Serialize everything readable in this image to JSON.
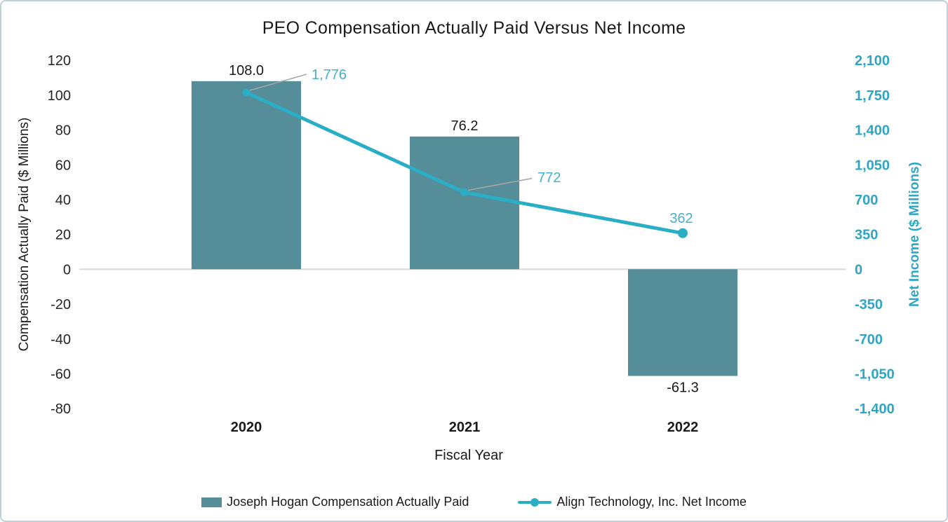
{
  "chart_data": {
    "type": "combo-bar-line",
    "title": "PEO Compensation Actually Paid Versus Net Income",
    "x_axis_title": "Fiscal Year",
    "categories": [
      "2020",
      "2021",
      "2022"
    ],
    "series": [
      {
        "name": "Joseph Hogan Compensation Actually Paid",
        "type": "bar",
        "axis": "left",
        "values": [
          108.0,
          76.2,
          -61.3
        ],
        "data_labels": [
          "108.0",
          "76.2",
          "-61.3"
        ],
        "color": "#558E98",
        "label_color": "#1a1a1a"
      },
      {
        "name": "Align Technology, Inc. Net Income",
        "type": "line",
        "axis": "right",
        "values": [
          1776,
          772,
          362
        ],
        "data_labels": [
          "1,776",
          "772",
          "362"
        ],
        "color": "#29AEC6",
        "label_color": "#45B0CA"
      }
    ],
    "left_axis": {
      "title": "Compensation Actually Paid ($ Millions)",
      "min": -80,
      "max": 120,
      "tick_values": [
        120,
        100,
        80,
        60,
        40,
        20,
        0,
        -20,
        -40,
        -60,
        -80
      ],
      "tick_labels": [
        "120",
        "100",
        "80",
        "60",
        "40",
        "20",
        "0",
        "-20",
        "-40",
        "-60",
        "-80"
      ],
      "text_color": "#262626"
    },
    "right_axis": {
      "title": "Net Income ($ Millions)",
      "min": -1400,
      "max": 2100,
      "tick_values": [
        2100,
        1750,
        1400,
        1050,
        700,
        350,
        0,
        -350,
        -700,
        -1050,
        -1400
      ],
      "tick_labels": [
        "2,100",
        "1,750",
        "1,400",
        "1,050",
        "700",
        "350",
        "0",
        "-350",
        "-700",
        "-1,050",
        "-1,400"
      ],
      "text_color": "#2EA6C2"
    },
    "zero_gridline_color": "#D9D9D9",
    "leader_line_color": "#A6A6A6",
    "legend_position": "bottom"
  },
  "legend": {
    "items": [
      {
        "label": "Joseph Hogan Compensation Actually Paid",
        "swatch": "bar"
      },
      {
        "label": "Align Technology, Inc. Net Income",
        "swatch": "line"
      }
    ]
  }
}
